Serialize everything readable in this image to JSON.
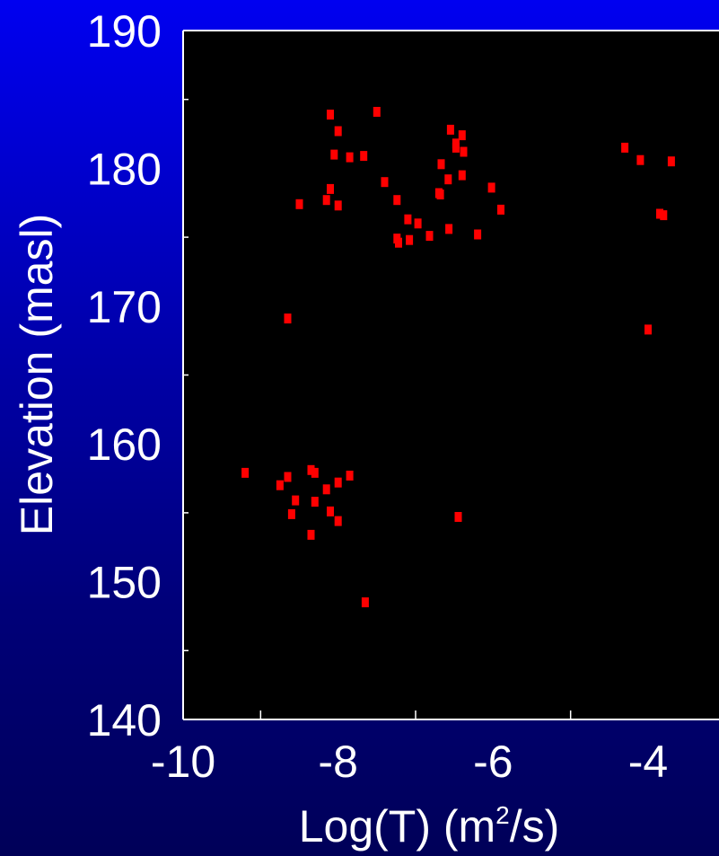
{
  "chart_data": {
    "type": "scatter",
    "title": "",
    "xlabel": {
      "base": "Log(T) (m",
      "superscript": "2",
      "tail": "/s)"
    },
    "ylabel": "Elevation (masl)",
    "xlim": [
      -10,
      -3.0
    ],
    "ylim": [
      140,
      190
    ],
    "x_ticks": [
      -10,
      -8,
      -6,
      -4
    ],
    "x_tick_labels": [
      "-10",
      "-8",
      "-6",
      "-4"
    ],
    "x_minor_ticks": [
      -9,
      -7,
      -5
    ],
    "y_ticks": [
      140,
      150,
      160,
      170,
      180,
      190
    ],
    "y_tick_labels": [
      "140",
      "150",
      "160",
      "170",
      "180",
      "190"
    ],
    "y_minor_ticks": [
      145,
      155,
      165,
      175,
      185
    ],
    "grid": false,
    "legend": null,
    "colors": {
      "plot_bg": "#000000",
      "marker": "#ff0000",
      "axis": "#ffffff",
      "text": "#ffffff"
    },
    "points": [
      {
        "x": -8.1,
        "y": 183.9
      },
      {
        "x": -7.5,
        "y": 184.1
      },
      {
        "x": -8.0,
        "y": 182.7
      },
      {
        "x": -6.55,
        "y": 182.8
      },
      {
        "x": -6.4,
        "y": 182.4
      },
      {
        "x": -6.48,
        "y": 181.8
      },
      {
        "x": -6.48,
        "y": 181.5
      },
      {
        "x": -6.38,
        "y": 181.2
      },
      {
        "x": -8.05,
        "y": 181.0
      },
      {
        "x": -7.85,
        "y": 180.8
      },
      {
        "x": -7.67,
        "y": 180.9
      },
      {
        "x": -6.67,
        "y": 180.3
      },
      {
        "x": -6.4,
        "y": 179.5
      },
      {
        "x": -6.58,
        "y": 179.2
      },
      {
        "x": -7.4,
        "y": 179.0
      },
      {
        "x": -6.02,
        "y": 178.6
      },
      {
        "x": -8.1,
        "y": 178.5
      },
      {
        "x": -6.7,
        "y": 178.2
      },
      {
        "x": -6.68,
        "y": 178.1
      },
      {
        "x": -8.15,
        "y": 177.7
      },
      {
        "x": -7.24,
        "y": 177.7
      },
      {
        "x": -8.5,
        "y": 177.4
      },
      {
        "x": -8.0,
        "y": 177.3
      },
      {
        "x": -5.9,
        "y": 177.0
      },
      {
        "x": -7.1,
        "y": 176.3
      },
      {
        "x": -6.97,
        "y": 176.0
      },
      {
        "x": -6.57,
        "y": 175.6
      },
      {
        "x": -6.2,
        "y": 175.2
      },
      {
        "x": -6.82,
        "y": 175.1
      },
      {
        "x": -7.24,
        "y": 174.9
      },
      {
        "x": -7.08,
        "y": 174.8
      },
      {
        "x": -7.22,
        "y": 174.6
      },
      {
        "x": -4.3,
        "y": 181.5
      },
      {
        "x": -4.1,
        "y": 180.6
      },
      {
        "x": -3.7,
        "y": 180.5
      },
      {
        "x": -3.85,
        "y": 176.7
      },
      {
        "x": -3.8,
        "y": 176.6
      },
      {
        "x": -8.65,
        "y": 169.1
      },
      {
        "x": -4.0,
        "y": 168.3
      },
      {
        "x": -9.2,
        "y": 157.9
      },
      {
        "x": -8.35,
        "y": 158.1
      },
      {
        "x": -8.3,
        "y": 157.9
      },
      {
        "x": -7.85,
        "y": 157.7
      },
      {
        "x": -8.65,
        "y": 157.6
      },
      {
        "x": -8.0,
        "y": 157.2
      },
      {
        "x": -8.75,
        "y": 157.0
      },
      {
        "x": -8.15,
        "y": 156.7
      },
      {
        "x": -8.55,
        "y": 155.9
      },
      {
        "x": -8.3,
        "y": 155.8
      },
      {
        "x": -8.1,
        "y": 155.1
      },
      {
        "x": -8.6,
        "y": 154.9
      },
      {
        "x": -8.0,
        "y": 154.4
      },
      {
        "x": -6.45,
        "y": 154.7
      },
      {
        "x": -8.35,
        "y": 153.4
      },
      {
        "x": -7.65,
        "y": 148.5
      }
    ]
  }
}
